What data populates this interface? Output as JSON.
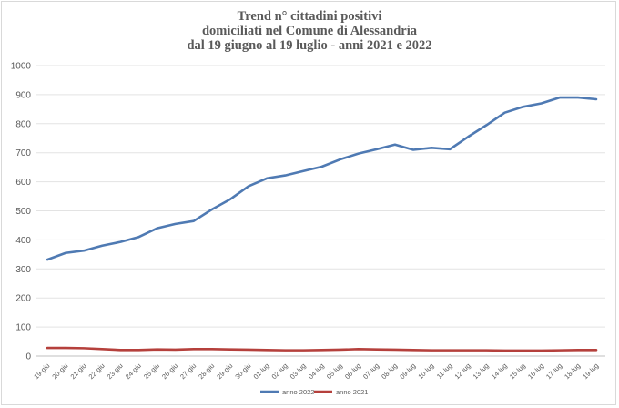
{
  "chart_data": {
    "type": "line",
    "title_lines": [
      "Trend n° cittadini positivi",
      "domiciliati nel Comune di Alessandria",
      "dal 19 giugno al 19 luglio - anni 2021 e 2022"
    ],
    "x": [
      "19-giu",
      "20-giu",
      "21-giu",
      "22-giu",
      "23-giu",
      "24-giu",
      "25-giu",
      "26-giu",
      "27-giu",
      "28-giu",
      "29-giu",
      "30-giu",
      "01-lug",
      "02-lug",
      "03-lug",
      "04-lug",
      "05-lug",
      "06-lug",
      "07-lug",
      "08-lug",
      "09-lug",
      "10-lug",
      "11-lug",
      "12-lug",
      "13-lug",
      "14-lug",
      "15-lug",
      "16-lug",
      "17-lug",
      "18-lug",
      "19-lug"
    ],
    "series": [
      {
        "name": "anno 2022",
        "color": "#4f7ab3",
        "values": [
          332,
          355,
          363,
          380,
          393,
          410,
          440,
          455,
          465,
          505,
          540,
          585,
          612,
          622,
          637,
          652,
          677,
          697,
          712,
          728,
          710,
          717,
          712,
          755,
          795,
          838,
          858,
          870,
          890,
          890,
          884
        ]
      },
      {
        "name": "anno 2021",
        "color": "#b5403c",
        "values": [
          28,
          28,
          27,
          24,
          21,
          21,
          23,
          22,
          24,
          24,
          23,
          22,
          21,
          20,
          20,
          21,
          22,
          24,
          23,
          22,
          21,
          20,
          20,
          20,
          20,
          19,
          19,
          19,
          20,
          21,
          21
        ]
      }
    ],
    "yticks": [
      0,
      100,
      200,
      300,
      400,
      500,
      600,
      700,
      800,
      900,
      1000
    ],
    "ylim": [
      0,
      1000
    ],
    "grid": true,
    "legend_position": "bottom"
  }
}
